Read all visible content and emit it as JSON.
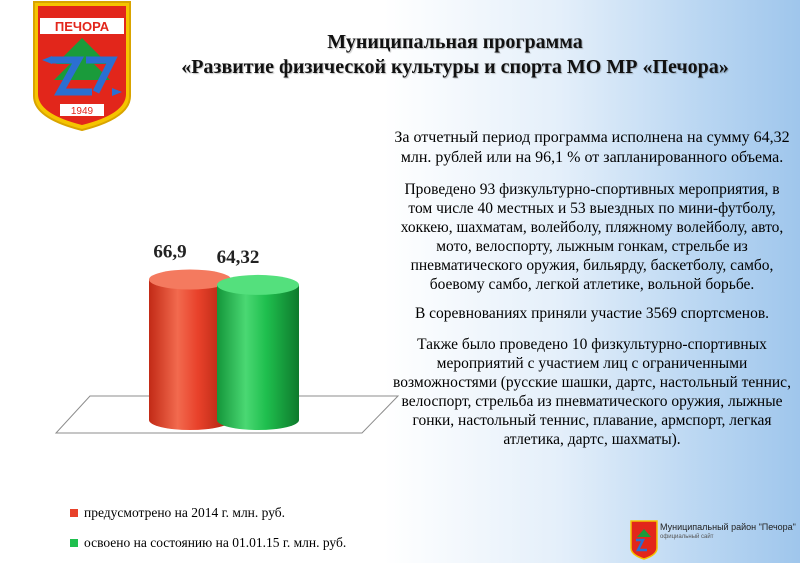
{
  "emblem": {
    "name": "ПЕЧОРА",
    "year": "1949"
  },
  "title": {
    "line1": "Муниципальная программа",
    "line2": "«Развитие физической культуры и спорта МО МР «Печора»"
  },
  "chart_data": {
    "type": "bar",
    "style": "3d-cylinder",
    "categories": [
      "предусмотрено на 2014 г. млн. руб.",
      "освоено на состоянию на 01.01.15 г. млн. руб."
    ],
    "values": [
      66.9,
      64.32
    ],
    "data_labels": [
      "66,9",
      "64,32"
    ],
    "colors": [
      "#e8412a",
      "#1fbf4e"
    ],
    "legend_position": "bottom",
    "grid": false
  },
  "legend": [
    {
      "label": "предусмотрено на 2014 г. млн. руб.",
      "color": "#e8412a"
    },
    {
      "label": "освоено на состоянию на 01.01.15 г. млн. руб.",
      "color": "#1fbf4e"
    }
  ],
  "text": {
    "p1": "За отчетный период программа исполнена на сумму 64,32 млн. рублей или на 96,1 % от запланированного объема.",
    "p2": "Проведено 93 физкультурно-спортивных мероприятия, в том числе 40 местных и 53 выездных по мини-футболу, хоккею, шахматам, волейболу, пляжному волейболу, авто, мото, велоспорту, лыжным гонкам, стрельбе из пневматического оружия, бильярду, баскетболу, самбо, боевому самбо, легкой атлетике, вольной борьбе.",
    "p3": "В соревнованиях приняли участие 3569 спортсменов.",
    "p4": "Также было проведено 10 физкультурно-спортивных мероприятий с участием лиц с ограниченными возможностями (русские шашки, дартс, настольный теннис, велоспорт, стрельба из пневматического оружия, лыжные гонки, настольный теннис, плавание, армспорт, легкая атлетика, дартс, шахматы)."
  },
  "corner_logo": {
    "caption": "Муниципальный район \"Печора\"",
    "subcaption": "официальный сайт"
  }
}
